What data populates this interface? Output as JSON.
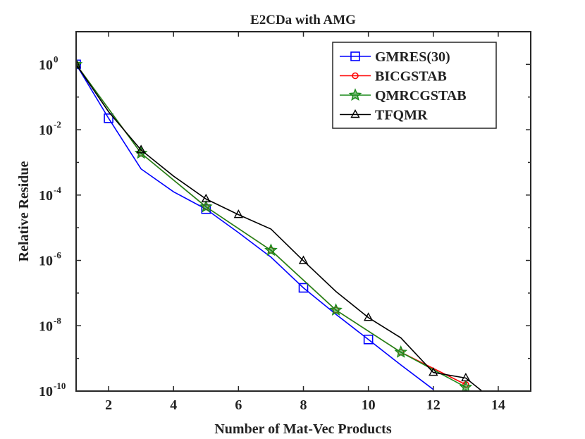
{
  "chart_data": {
    "type": "line",
    "title": "E2CDa with AMG",
    "xlabel": "Number of Mat-Vec Products",
    "ylabel": "Relative Residue",
    "yscale": "log",
    "xlim": [
      1,
      15
    ],
    "ylim_exp": [
      -10,
      1
    ],
    "xticks": [
      2,
      4,
      6,
      8,
      10,
      12,
      14
    ],
    "xtick_labels": [
      "2",
      "4",
      "6",
      "8",
      "10",
      "12",
      "14"
    ],
    "yticks_exp": [
      -10,
      -8,
      -6,
      -4,
      -2,
      0
    ],
    "ytick_base": "10",
    "ytick_exp_labels": [
      "-10",
      "-8",
      "-6",
      "-4",
      "-2",
      "0"
    ],
    "legend_position": "top-right",
    "series": [
      {
        "name": "GMRES(30)",
        "color": "#0000ff",
        "marker": "square",
        "x": [
          1,
          2,
          3,
          4,
          5,
          6,
          7,
          8,
          9,
          10,
          11,
          12
        ],
        "y_exp": [
          0,
          -1.65,
          -3.2,
          -3.9,
          -4.43,
          -5.15,
          -5.9,
          -6.84,
          -7.65,
          -8.42,
          -9.2,
          -9.95
        ],
        "marker_x": [
          1,
          2,
          5,
          8,
          10
        ],
        "marker_y_exp": [
          0,
          -1.65,
          -4.43,
          -6.84,
          -8.42
        ]
      },
      {
        "name": "BICGSTAB",
        "color": "#ff0000",
        "marker": "circle",
        "x": [
          1,
          3,
          5,
          7,
          9,
          11,
          13
        ],
        "y_exp": [
          0,
          -2.72,
          -4.36,
          -5.69,
          -7.52,
          -8.81,
          -9.8
        ],
        "marker_x": [
          1,
          3,
          5,
          7,
          9,
          11,
          13
        ],
        "marker_y_exp": [
          0,
          -2.72,
          -4.36,
          -5.69,
          -7.52,
          -8.81,
          -9.8
        ]
      },
      {
        "name": "QMRCGSTAB",
        "color": "#1a8a1a",
        "marker": "star",
        "x": [
          1,
          3,
          5,
          7,
          9,
          11,
          13
        ],
        "y_exp": [
          0,
          -2.72,
          -4.36,
          -5.69,
          -7.52,
          -8.81,
          -9.88
        ],
        "marker_x": [
          1,
          3,
          5,
          7,
          9,
          11,
          13
        ],
        "marker_y_exp": [
          0,
          -2.72,
          -4.36,
          -5.69,
          -7.52,
          -8.81,
          -9.88
        ]
      },
      {
        "name": "TFQMR",
        "color": "#000000",
        "marker": "triangle",
        "x": [
          1,
          2,
          3,
          4,
          5,
          6,
          7,
          8,
          9,
          10,
          11,
          12,
          13,
          13.5
        ],
        "y_exp": [
          0,
          -1.45,
          -2.62,
          -3.42,
          -4.12,
          -4.6,
          -5.04,
          -6.01,
          -6.95,
          -7.75,
          -8.37,
          -9.43,
          -9.6,
          -10
        ],
        "marker_x": [
          1,
          3,
          5,
          6,
          8,
          10,
          12,
          13
        ],
        "marker_y_exp": [
          0,
          -2.62,
          -4.12,
          -4.6,
          -6.01,
          -7.75,
          -9.43,
          -9.6
        ]
      }
    ]
  }
}
